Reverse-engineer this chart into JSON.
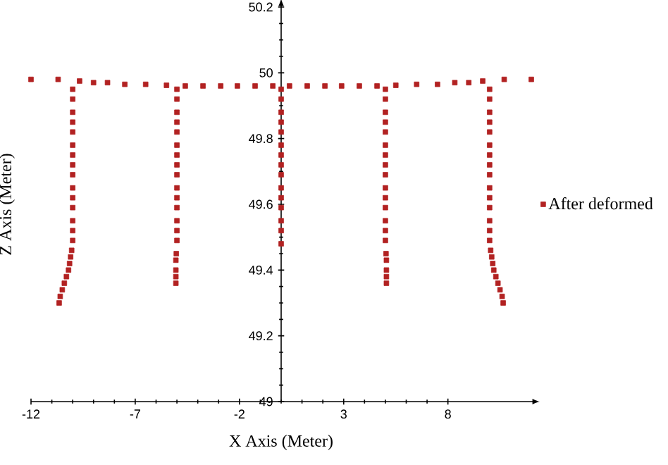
{
  "chart_data": {
    "type": "scatter",
    "xlabel": "X Axis (Meter)",
    "ylabel": "Z Axis (Meter)",
    "xlim": [
      -12,
      12
    ],
    "ylim": [
      49,
      50.2
    ],
    "xticks": [
      -12,
      -7,
      -2,
      3,
      8
    ],
    "yticks": [
      49,
      49.2,
      49.4,
      49.6,
      49.8,
      50,
      50.2
    ],
    "legend": "right",
    "marker": "square",
    "grid": false,
    "series": [
      {
        "name": "After deformed",
        "color": "#b22222",
        "x": [
          -12,
          -10.7,
          -9.67,
          -9,
          -8.33,
          -7.5,
          -6.5,
          -5.5,
          -4.6,
          -3.75,
          -2.9,
          -2.1,
          -1.25,
          -0.4,
          0.4,
          1.25,
          2.1,
          2.9,
          3.75,
          4.6,
          5.5,
          6.5,
          7.5,
          8.33,
          9,
          9.67,
          10.7,
          12,
          -10,
          -10,
          -10,
          -10,
          -10,
          -10,
          -10,
          -10,
          -10,
          -10,
          -10,
          -10,
          -10,
          -10,
          -10,
          -10.05,
          -10.1,
          -10.15,
          -10.2,
          -10.3,
          -10.4,
          -10.5,
          -10.6,
          -10.65,
          -5,
          -5,
          -5,
          -5,
          -5,
          -5,
          -5,
          -5,
          -5,
          -5,
          -5,
          -5,
          -5,
          -5,
          -5,
          -5.03,
          -5.05,
          -5.05,
          -5.05,
          -5.05,
          0,
          0,
          0,
          0,
          0,
          0,
          0,
          0,
          0,
          0,
          0,
          0,
          0,
          0,
          0,
          5,
          5,
          5,
          5,
          5,
          5,
          5,
          5,
          5,
          5,
          5,
          5,
          5,
          5,
          5,
          5.03,
          5.05,
          5.05,
          5.05,
          5.05,
          10,
          10,
          10,
          10,
          10,
          10,
          10,
          10,
          10,
          10,
          10,
          10,
          10,
          10,
          10,
          10.05,
          10.1,
          10.15,
          10.2,
          10.3,
          10.4,
          10.5,
          10.6,
          10.65
        ],
        "values": [
          49.98,
          49.98,
          49.975,
          49.97,
          49.97,
          49.965,
          49.965,
          49.962,
          49.96,
          49.96,
          49.96,
          49.96,
          49.96,
          49.96,
          49.96,
          49.96,
          49.96,
          49.96,
          49.96,
          49.96,
          49.962,
          49.965,
          49.965,
          49.97,
          49.97,
          49.975,
          49.98,
          49.98,
          49.95,
          49.92,
          49.88,
          49.85,
          49.82,
          49.78,
          49.75,
          49.72,
          49.69,
          49.65,
          49.62,
          49.59,
          49.55,
          49.52,
          49.49,
          49.46,
          49.44,
          49.42,
          49.4,
          49.38,
          49.36,
          49.34,
          49.32,
          49.3,
          49.95,
          49.92,
          49.88,
          49.85,
          49.82,
          49.78,
          49.75,
          49.72,
          49.69,
          49.65,
          49.62,
          49.59,
          49.55,
          49.52,
          49.49,
          49.45,
          49.43,
          49.4,
          49.38,
          49.36,
          49.95,
          49.92,
          49.88,
          49.85,
          49.82,
          49.78,
          49.75,
          49.72,
          49.69,
          49.65,
          49.62,
          49.59,
          49.55,
          49.52,
          49.48,
          49.95,
          49.92,
          49.88,
          49.85,
          49.82,
          49.78,
          49.75,
          49.72,
          49.69,
          49.65,
          49.62,
          49.59,
          49.55,
          49.52,
          49.49,
          49.45,
          49.43,
          49.4,
          49.38,
          49.36,
          49.95,
          49.92,
          49.88,
          49.85,
          49.82,
          49.78,
          49.75,
          49.72,
          49.69,
          49.65,
          49.62,
          49.59,
          49.55,
          49.52,
          49.49,
          49.46,
          49.44,
          49.42,
          49.4,
          49.38,
          49.36,
          49.34,
          49.32,
          49.3
        ]
      }
    ]
  }
}
